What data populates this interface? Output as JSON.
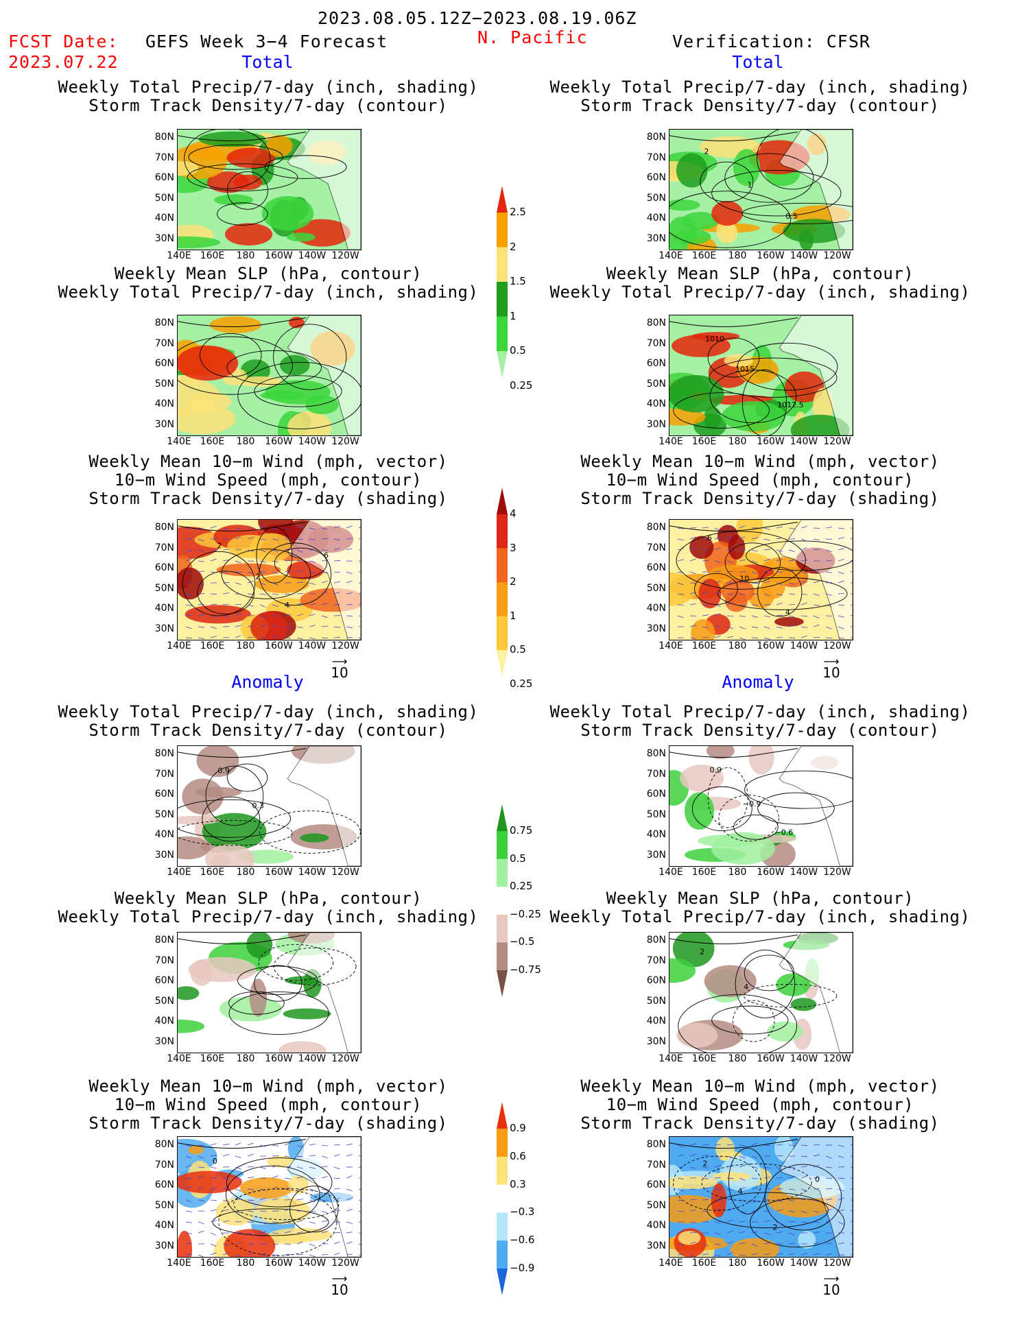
{
  "header": {
    "date_range": "2023.08.05.12Z−2023.08.19.06Z",
    "region": "N. Pacific",
    "fcst_label": "FCST Date:",
    "fcst_date": "2023.07.22",
    "forecast_title": "GEFS Week 3−4 Forecast",
    "verification": "Verification: CFSR"
  },
  "sections": {
    "total": "Total",
    "anomaly": "Anomaly"
  },
  "panel_titles": {
    "precip_storm": [
      "Weekly Total Precip/7-day (inch, shading)",
      "Storm Track Density/7-day (contour)"
    ],
    "slp_precip": [
      "Weekly Mean SLP (hPa, contour)",
      "Weekly Total Precip/7-day (inch, shading)"
    ],
    "wind_storm": [
      "Weekly Mean 10−m Wind (mph, vector)",
      "10−m Wind Speed (mph, contour)",
      "Storm Track Density/7-day (shading)"
    ]
  },
  "axes": {
    "lat": [
      "80N",
      "70N",
      "60N",
      "50N",
      "40N",
      "30N"
    ],
    "lon": [
      "140E",
      "160E",
      "180",
      "160W",
      "140W",
      "120W"
    ]
  },
  "vector_ref": "10",
  "colorbars": {
    "precip_total": {
      "labels": [
        "2.5",
        "2",
        "1.5",
        "1",
        "0.5",
        "0.25"
      ],
      "colors": [
        "#e4260c",
        "#f8a000",
        "#fce27a",
        "#1f9d1f",
        "#3cd63c",
        "#a6f0a6"
      ]
    },
    "storm_total": {
      "labels": [
        "4",
        "3",
        "2",
        "1",
        "0.5",
        "0.25"
      ],
      "colors": [
        "#a00a0a",
        "#dc2814",
        "#f0641e",
        "#f89c14",
        "#fcc83c",
        "#fdf0a0"
      ]
    },
    "precip_anom": {
      "labels": [
        "0.75",
        "0.5",
        "0.25",
        "−0.25",
        "−0.5",
        "−0.75"
      ],
      "colors": [
        "#1e961e",
        "#3cd03c",
        "#a0f0a0",
        "#ffffff",
        "#e6c8be",
        "#b48c82",
        "#785046"
      ]
    },
    "storm_anom": {
      "labels": [
        "0.9",
        "0.6",
        "0.3",
        "−0.3",
        "−0.6",
        "−0.9"
      ],
      "colors": [
        "#e8300c",
        "#f89c14",
        "#fde27a",
        "#ffffff",
        "#b4e6fa",
        "#50aaf0",
        "#1e64dc"
      ]
    }
  },
  "contour_labels": {
    "fcst_total_wind": [
      "2",
      "2",
      "4",
      "6"
    ],
    "obs_total_precip": [
      "2",
      "1",
      "0.5"
    ],
    "obs_total_slp": [
      "1010",
      "1015",
      "1012.5"
    ],
    "obs_total_wind": [
      "6",
      "10",
      "4"
    ],
    "fcst_anom_precip": [
      "0.9",
      "0.3"
    ],
    "obs_anom_precip": [
      "0.9",
      "−0.9",
      "−0.6"
    ],
    "obs_anom_slp": [
      "2",
      "4"
    ],
    "fcst_anom_wind": [
      "0"
    ],
    "obs_anom_wind": [
      "2",
      "4",
      "2",
      "0"
    ]
  }
}
